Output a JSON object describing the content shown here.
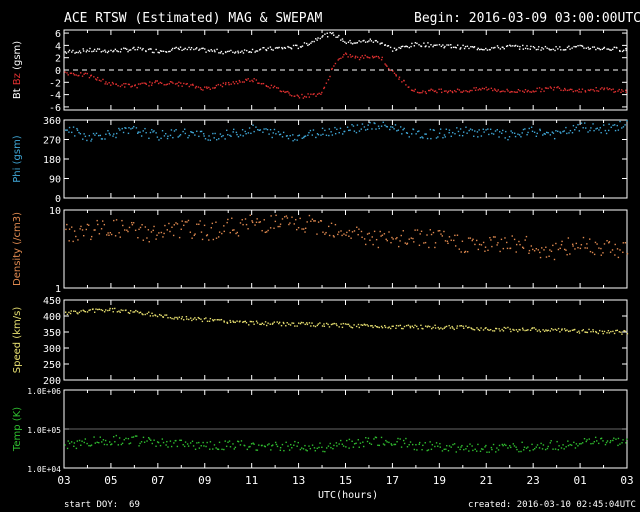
{
  "header": {
    "title": "ACE RTSW (Estimated) MAG & SWEPAM",
    "begin": "Begin: 2016-03-09 03:00:00UTC"
  },
  "footer": {
    "start_doy": "start DOY:  69",
    "created": "created: 2016-03-10 02:45:04UTC",
    "xlabel": "UTC(hours)"
  },
  "colors": {
    "background": "#000000",
    "bt": "#ffffff",
    "bz": "#e03030",
    "phi": "#40a8d8",
    "density": "#e08a50",
    "speed": "#e8e070",
    "temp": "#30c030",
    "frame": "#ffffff"
  },
  "chart_data": [
    {
      "type": "scatter",
      "panel": "mag",
      "ylabel_parts": [
        "Bt",
        "Bz",
        "(gsm)"
      ],
      "ylim": [
        -6.5,
        6.5
      ],
      "yticks": [
        "6",
        "4",
        "2",
        "0",
        "-2",
        "-4",
        "-6"
      ],
      "zero_line": true,
      "x_range_hours": [
        3,
        27
      ],
      "series": [
        {
          "name": "Bt",
          "x": [
            3,
            4,
            5,
            6,
            7,
            8,
            9,
            10,
            11,
            12,
            13,
            13.5,
            14,
            14.5,
            15,
            15.5,
            16,
            16.5,
            17,
            18,
            19,
            20,
            21,
            22,
            23,
            24,
            25,
            26,
            27
          ],
          "y": [
            3.0,
            3.3,
            3.2,
            3.5,
            3.2,
            3.6,
            3.3,
            3.0,
            3.3,
            3.6,
            3.9,
            4.6,
            5.8,
            5.9,
            4.6,
            4.6,
            4.9,
            4.6,
            3.4,
            4.3,
            4.1,
            3.8,
            3.6,
            3.9,
            3.7,
            3.6,
            3.8,
            3.6,
            3.4
          ]
        },
        {
          "name": "Bz",
          "x": [
            3,
            4,
            5,
            6,
            7,
            8,
            9,
            10,
            11,
            12,
            13,
            13.5,
            14,
            14.5,
            15,
            15.5,
            16,
            16.5,
            17,
            18,
            19,
            20,
            21,
            22,
            23,
            24,
            25,
            26,
            27
          ],
          "y": [
            -0.3,
            -0.8,
            -2.2,
            -2.5,
            -1.9,
            -2.2,
            -2.9,
            -2.1,
            -1.4,
            -2.9,
            -4.2,
            -4.0,
            -3.6,
            1.2,
            2.6,
            2.0,
            2.4,
            2.1,
            -0.4,
            -3.5,
            -3.2,
            -3.3,
            -2.9,
            -3.4,
            -3.2,
            -2.8,
            -3.2,
            -3.0,
            -3.4
          ]
        }
      ]
    },
    {
      "type": "scatter",
      "panel": "phi",
      "ylabel": "Phi (gsm)",
      "ylim": [
        0,
        360
      ],
      "yticks": [
        "360",
        "270",
        "180",
        "90",
        "0"
      ],
      "x_range_hours": [
        3,
        27
      ],
      "series": [
        {
          "name": "Phi",
          "x": [
            3,
            4,
            5,
            6,
            7,
            8,
            9,
            10,
            11,
            12,
            13,
            14,
            15,
            16,
            17,
            18,
            19,
            20,
            21,
            22,
            23,
            24,
            25,
            26,
            27
          ],
          "y": [
            325,
            285,
            300,
            315,
            290,
            305,
            290,
            295,
            320,
            300,
            285,
            310,
            320,
            335,
            330,
            295,
            300,
            310,
            305,
            290,
            310,
            295,
            330,
            320,
            345
          ]
        }
      ]
    },
    {
      "type": "scatter",
      "panel": "density",
      "ylabel": "Density (/cm3)",
      "yscale": "log",
      "ylim": [
        1,
        10
      ],
      "yticks": [
        "10",
        "1"
      ],
      "x_range_hours": [
        3,
        27
      ],
      "series": [
        {
          "name": "Density",
          "x": [
            3,
            4,
            5,
            6,
            7,
            8,
            9,
            10,
            11,
            12,
            13,
            14,
            15,
            16,
            17,
            18,
            19,
            20,
            21,
            22,
            23,
            24,
            25,
            26,
            27
          ],
          "y": [
            5.0,
            5.5,
            6.0,
            5.5,
            5.0,
            5.8,
            5.5,
            6.0,
            6.8,
            7.0,
            6.5,
            6.5,
            5.5,
            4.5,
            4.0,
            4.5,
            4.2,
            3.8,
            3.5,
            4.0,
            3.3,
            3.0,
            3.8,
            3.5,
            3.2
          ]
        }
      ]
    },
    {
      "type": "scatter",
      "panel": "speed",
      "ylabel": "Speed (km/s)",
      "ylim": [
        200,
        450
      ],
      "yticks": [
        "450",
        "400",
        "350",
        "300",
        "250",
        "200"
      ],
      "x_range_hours": [
        3,
        27
      ],
      "series": [
        {
          "name": "Speed",
          "x": [
            3,
            4,
            5,
            6,
            7,
            8,
            9,
            10,
            11,
            12,
            13,
            14,
            15,
            16,
            17,
            18,
            19,
            20,
            21,
            22,
            23,
            24,
            25,
            26,
            27
          ],
          "y": [
            410,
            418,
            422,
            414,
            404,
            395,
            390,
            385,
            380,
            378,
            376,
            374,
            372,
            371,
            369,
            368,
            367,
            366,
            362,
            360,
            359,
            357,
            355,
            353,
            350
          ]
        }
      ]
    },
    {
      "type": "scatter",
      "panel": "temp",
      "ylabel": "Temp (K)",
      "yscale": "log",
      "ylim": [
        10000,
        1000000
      ],
      "yticks": [
        "1.0E+06",
        "1.0E+05",
        "1.0E+04"
      ],
      "x_range_hours": [
        3,
        27
      ],
      "series": [
        {
          "name": "Temp",
          "x": [
            3,
            4,
            5,
            6,
            7,
            8,
            9,
            10,
            11,
            12,
            13,
            14,
            15,
            16,
            17,
            18,
            19,
            20,
            21,
            22,
            23,
            24,
            25,
            26,
            27
          ],
          "y": [
            40000,
            48000,
            55000,
            52000,
            45000,
            42000,
            40000,
            40000,
            38000,
            38000,
            37000,
            36000,
            42000,
            48000,
            50000,
            40000,
            36000,
            35000,
            34000,
            35000,
            37000,
            40000,
            45000,
            50000,
            45000
          ]
        }
      ]
    }
  ],
  "x_ticks": [
    "03",
    "05",
    "07",
    "09",
    "11",
    "13",
    "15",
    "17",
    "19",
    "21",
    "23",
    "01",
    "03"
  ]
}
